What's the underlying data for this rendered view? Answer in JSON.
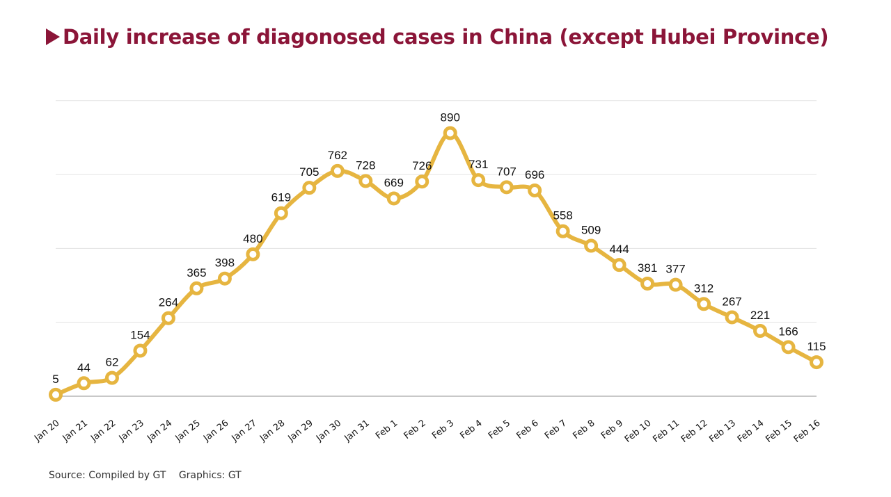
{
  "title": "Daily increase of diagonosed cases in China (except Hubei Province)",
  "source": "Source: Compiled by GT",
  "graphics": "Graphics: GT",
  "colors": {
    "title": "#8b1538",
    "line": "#e6b540",
    "marker_fill": "#ffffff",
    "grid": "#e3e3e3",
    "baseline": "#a8a8a8",
    "text": "#111111"
  },
  "chart_data": {
    "type": "line",
    "title": "Daily increase of diagonosed cases in China (except Hubei Province)",
    "xlabel": "",
    "ylabel": "",
    "ylim": [
      0,
      1000
    ],
    "grid": true,
    "legend": "none",
    "categories": [
      "Jan 20",
      "Jan 21",
      "Jan 22",
      "Jan 23",
      "Jan 24",
      "Jan 25",
      "Jan 26",
      "Jan 27",
      "Jan 28",
      "Jan 29",
      "Jan 30",
      "Jan 31",
      "Feb 1",
      "Feb 2",
      "Feb 3",
      "Feb 4",
      "Feb 5",
      "Feb 6",
      "Feb 7",
      "Feb 8",
      "Feb 9",
      "Feb 10",
      "Feb 11",
      "Feb 12",
      "Feb 13",
      "Feb 14",
      "Feb 15",
      "Feb 16"
    ],
    "values": [
      5,
      44,
      62,
      154,
      264,
      365,
      398,
      480,
      619,
      705,
      762,
      728,
      669,
      726,
      890,
      731,
      707,
      696,
      558,
      509,
      444,
      381,
      377,
      312,
      267,
      221,
      166,
      115
    ]
  }
}
